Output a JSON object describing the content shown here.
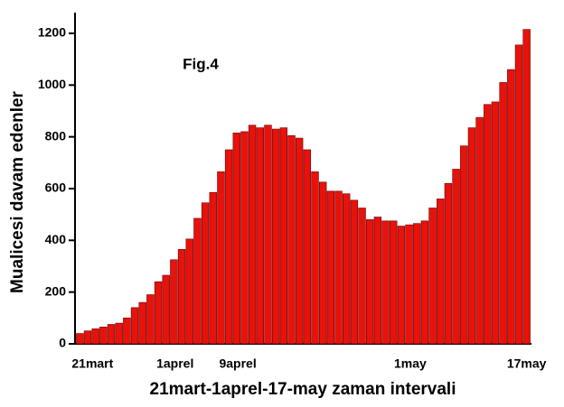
{
  "chart_data": {
    "type": "bar",
    "annotation": "Fig.4",
    "x_label": "21mart-1aprel-17-may zaman intervali",
    "y_label": "Mualicesi davam edenler",
    "categories": [
      "21mart",
      null,
      null,
      null,
      null,
      null,
      null,
      null,
      null,
      null,
      null,
      "1aprel",
      null,
      null,
      null,
      null,
      null,
      null,
      null,
      "9aprel",
      null,
      null,
      null,
      null,
      null,
      null,
      null,
      null,
      null,
      null,
      null,
      null,
      null,
      null,
      null,
      null,
      null,
      null,
      null,
      null,
      null,
      "1may",
      null,
      null,
      null,
      null,
      null,
      null,
      null,
      null,
      null,
      null,
      null,
      null,
      null,
      null,
      null,
      "17may"
    ],
    "values": [
      40,
      50,
      58,
      65,
      75,
      80,
      100,
      140,
      160,
      190,
      240,
      265,
      325,
      365,
      405,
      485,
      545,
      585,
      665,
      750,
      815,
      820,
      845,
      835,
      845,
      830,
      835,
      805,
      795,
      750,
      665,
      625,
      590,
      590,
      580,
      555,
      525,
      480,
      490,
      475,
      475,
      455,
      460,
      465,
      475,
      525,
      560,
      620,
      675,
      765,
      835,
      875,
      925,
      935,
      1010,
      1060,
      1155,
      1215
    ],
    "color": "#e8120c",
    "ylim": [
      0,
      1280
    ],
    "yticks": [
      0,
      200,
      400,
      600,
      800,
      1000,
      1200
    ]
  }
}
